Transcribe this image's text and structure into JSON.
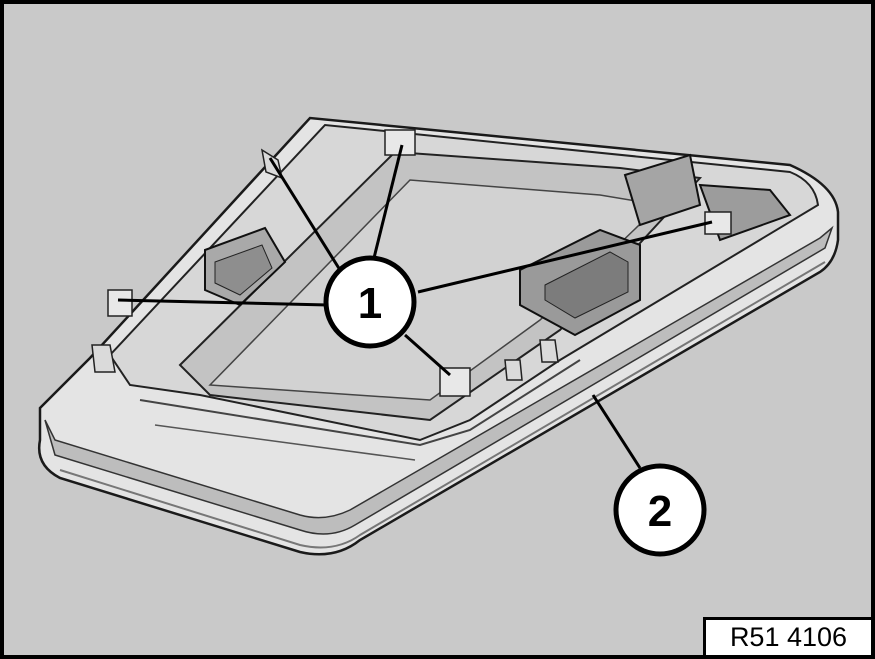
{
  "diagram": {
    "callouts": [
      {
        "label": "1"
      },
      {
        "label": "2"
      }
    ],
    "reference_code": "R51 4106",
    "colors": {
      "background": "#c9c9c9",
      "part_light": "#e6e6e6",
      "part_mid": "#b9b9b9",
      "part_dark": "#8a8a8a",
      "outline": "#000000"
    }
  }
}
